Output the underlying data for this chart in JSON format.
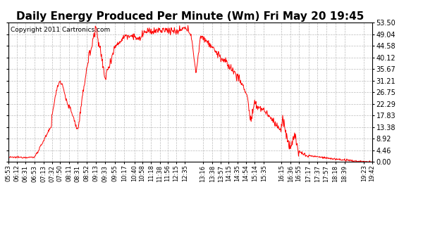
{
  "title": "Daily Energy Produced Per Minute (Wm) Fri May 20 19:45",
  "copyright": "Copyright 2011 Cartronics.com",
  "line_color": "#FF0000",
  "bg_color": "#FFFFFF",
  "plot_bg_color": "#FFFFFF",
  "grid_color": "#BBBBBB",
  "yticks": [
    0.0,
    4.46,
    8.92,
    13.38,
    17.83,
    22.29,
    26.75,
    31.21,
    35.67,
    40.12,
    44.58,
    49.04,
    53.5
  ],
  "ymax": 53.5,
  "ymin": 0.0,
  "xtick_labels": [
    "05:53",
    "06:12",
    "06:31",
    "06:53",
    "07:13",
    "07:32",
    "07:50",
    "08:11",
    "08:31",
    "08:52",
    "09:13",
    "09:33",
    "09:55",
    "10:17",
    "10:40",
    "10:58",
    "11:18",
    "11:38",
    "11:56",
    "12:15",
    "12:35",
    "13:16",
    "13:38",
    "13:57",
    "14:15",
    "14:35",
    "14:54",
    "15:14",
    "15:35",
    "16:15",
    "16:36",
    "16:55",
    "17:17",
    "17:37",
    "17:57",
    "18:18",
    "18:39",
    "19:23",
    "19:42"
  ],
  "title_fontsize": 11,
  "copyright_fontsize": 6.5,
  "tick_fontsize": 6,
  "ytick_fontsize": 7,
  "linewidth": 0.7
}
